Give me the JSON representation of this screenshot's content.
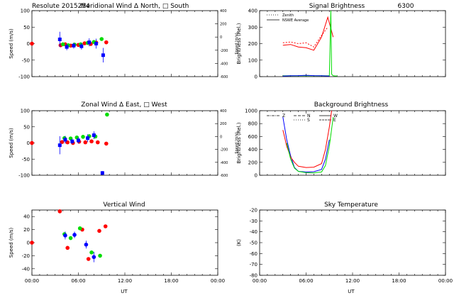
{
  "chart_data": [
    {
      "id": "meridional",
      "type": "scatter",
      "title_left": "Resolute  2015254",
      "title": "Meridional Wind  Δ North,  □ South",
      "xlabel": "",
      "ylabel": "Speed (m/s)",
      "ylabel_right": "Speed (m/s)",
      "xlim": [
        0,
        24
      ],
      "ylim": [
        -100,
        100
      ],
      "yticks": [
        -100,
        -50,
        0,
        50,
        100
      ],
      "ylim_right": [
        -600,
        400
      ],
      "yticks_right": [
        -600,
        -400,
        -200,
        0,
        200,
        400
      ],
      "series": [
        {
          "name": "red",
          "color": "#ff0000",
          "marker": "dot",
          "points": [
            [
              0,
              0
            ],
            [
              3.7,
              -5
            ],
            [
              4.3,
              -2
            ],
            [
              5.0,
              -6
            ],
            [
              6.0,
              -4
            ],
            [
              6.8,
              1
            ],
            [
              7.6,
              -1
            ],
            [
              8.3,
              3
            ],
            [
              9.6,
              4
            ]
          ]
        },
        {
          "name": "green",
          "color": "#00dd00",
          "marker": "dot",
          "points": [
            [
              4.0,
              -2
            ],
            [
              4.7,
              -5
            ],
            [
              5.5,
              -3
            ],
            [
              6.3,
              -2
            ],
            [
              7.2,
              2
            ],
            [
              8.0,
              5
            ],
            [
              9.0,
              14
            ]
          ]
        },
        {
          "name": "blue",
          "color": "#0000ff",
          "marker": "square",
          "points": [
            [
              3.6,
              13,
              23
            ],
            [
              4.5,
              -10,
              10
            ],
            [
              5.4,
              -6,
              9
            ],
            [
              6.4,
              -8,
              10
            ],
            [
              7.4,
              4,
              12
            ],
            [
              8.3,
              0,
              15
            ],
            [
              9.2,
              -35,
              22
            ]
          ]
        }
      ]
    },
    {
      "id": "zonal",
      "type": "scatter",
      "title": "Zonal Wind    Δ East,  □ West",
      "xlabel": "",
      "ylabel": "Speed (m/s)",
      "ylabel_right": "Speed (m/s)",
      "xlim": [
        0,
        24
      ],
      "ylim": [
        -100,
        100
      ],
      "yticks": [
        -100,
        -50,
        0,
        50,
        100
      ],
      "ylim_right": [
        -600,
        400
      ],
      "yticks_right": [
        -600,
        -400,
        -200,
        0,
        200,
        400
      ],
      "series": [
        {
          "name": "red",
          "color": "#ff0000",
          "marker": "dot",
          "points": [
            [
              0,
              0
            ],
            [
              3.9,
              3
            ],
            [
              4.6,
              2
            ],
            [
              5.3,
              0
            ],
            [
              6.1,
              4
            ],
            [
              6.9,
              2
            ],
            [
              7.7,
              5
            ],
            [
              8.5,
              2
            ],
            [
              9.6,
              -2
            ]
          ]
        },
        {
          "name": "green",
          "color": "#00dd00",
          "marker": "dot",
          "points": [
            [
              4.2,
              15
            ],
            [
              5.0,
              14
            ],
            [
              5.8,
              17
            ],
            [
              6.6,
              19
            ],
            [
              7.4,
              21
            ],
            [
              8.2,
              20
            ],
            [
              9.7,
              88
            ]
          ]
        },
        {
          "name": "blue",
          "color": "#0000ff",
          "marker": "square",
          "points": [
            [
              3.6,
              -7,
              28
            ],
            [
              4.3,
              10,
              12
            ],
            [
              5.2,
              5,
              8
            ],
            [
              6.0,
              8,
              10
            ],
            [
              7.2,
              15,
              12
            ],
            [
              8.0,
              24,
              12
            ],
            [
              9.1,
              -93,
              6
            ]
          ]
        }
      ]
    },
    {
      "id": "vertical",
      "type": "scatter",
      "title": "Vertical Wind",
      "xlabel": "UT",
      "ylabel": "Speed (m/s)",
      "xlim": [
        0,
        24
      ],
      "xticks": [
        "00:00",
        "06:00",
        "12:00",
        "18:00",
        "00:00"
      ],
      "ylim": [
        -50,
        50
      ],
      "yticks": [
        -40,
        -20,
        0,
        20,
        40
      ],
      "series": [
        {
          "name": "red",
          "color": "#ff0000",
          "marker": "dot",
          "points": [
            [
              0,
              0
            ],
            [
              3.6,
              48
            ],
            [
              4.6,
              -8
            ],
            [
              6.5,
              20
            ],
            [
              7.3,
              -25
            ],
            [
              8.7,
              18
            ],
            [
              9.5,
              25
            ]
          ]
        },
        {
          "name": "green",
          "color": "#00dd00",
          "marker": "dot",
          "points": [
            [
              4.2,
              13
            ],
            [
              5.0,
              7
            ],
            [
              6.2,
              22
            ],
            [
              7.7,
              -15
            ],
            [
              8.8,
              -20
            ]
          ]
        },
        {
          "name": "blue",
          "color": "#0000ff",
          "marker": "dot",
          "points": [
            [
              4.3,
              11,
              6
            ],
            [
              5.5,
              12,
              5
            ],
            [
              7.0,
              -3,
              6
            ],
            [
              8.0,
              -22,
              8
            ]
          ]
        }
      ]
    },
    {
      "id": "signal",
      "type": "line",
      "title": "Signal Brightness",
      "title_right": "6300",
      "xlabel": "",
      "ylabel": "Brightness (Rel.)",
      "xlim": [
        0,
        24
      ],
      "ylim": [
        0,
        400
      ],
      "yticks": [
        0,
        100,
        200,
        300,
        400
      ],
      "legend": [
        "Zenith",
        "NSWE Average"
      ],
      "series": [
        {
          "name": "Zenith",
          "color": "#ff0000",
          "dash": "2,2",
          "x": [
            3.0,
            4.0,
            5.0,
            6.0,
            7.0,
            8.0,
            8.8
          ],
          "y": [
            205,
            210,
            200,
            205,
            180,
            250,
            300
          ]
        },
        {
          "name": "red 2",
          "color": "#ff0000",
          "dash": "",
          "x": [
            3.0,
            4.0,
            5.0,
            6.0,
            7.0,
            8.0,
            8.8,
            9.5
          ],
          "y": [
            190,
            195,
            180,
            175,
            160,
            240,
            360,
            240
          ]
        },
        {
          "name": "green",
          "color": "#00dd00",
          "dash": "",
          "x": [
            3.0,
            5.0,
            7.0,
            8.5,
            9.0,
            9.2,
            9.3,
            9.5,
            10.0
          ],
          "y": [
            5,
            5,
            5,
            5,
            5,
            400,
            15,
            5,
            3
          ]
        },
        {
          "name": "NSWE Average",
          "color": "#0000ff",
          "dash": "",
          "x": [
            3.0,
            4.0,
            5.0,
            6.0,
            7.0,
            8.0,
            9.0
          ],
          "y": [
            3,
            5,
            6,
            8,
            6,
            5,
            3
          ]
        }
      ]
    },
    {
      "id": "background",
      "type": "line",
      "title": "Background Brightness",
      "xlabel": "",
      "ylabel": "Brightness (Rel.)",
      "xlim": [
        0,
        24
      ],
      "ylim": [
        0,
        1000
      ],
      "yticks": [
        0,
        200,
        400,
        600,
        800,
        1000
      ],
      "legend": [
        "Z",
        "N",
        "S",
        "W",
        "E"
      ],
      "series": [
        {
          "name": "blue",
          "color": "#0000ff",
          "dash": "",
          "x": [
            3.0,
            3.5,
            4.0,
            4.5,
            5.0,
            6.0,
            7.0,
            8.0,
            8.5,
            9.0
          ],
          "y": [
            900,
            550,
            300,
            120,
            60,
            50,
            55,
            90,
            250,
            550
          ]
        },
        {
          "name": "red",
          "color": "#ff0000",
          "dash": "",
          "x": [
            3.0,
            3.5,
            4.0,
            4.5,
            5.0,
            6.0,
            7.0,
            8.0,
            8.5,
            9.0,
            9.3
          ],
          "y": [
            700,
            450,
            280,
            200,
            140,
            120,
            125,
            180,
            400,
            750,
            1000
          ]
        },
        {
          "name": "green",
          "color": "#00dd00",
          "dash": "",
          "x": [
            3.5,
            4.0,
            4.5,
            5.0,
            6.0,
            7.0,
            8.0,
            8.5,
            9.0,
            9.5
          ],
          "y": [
            500,
            250,
            110,
            60,
            40,
            35,
            50,
            150,
            450,
            900
          ]
        }
      ]
    },
    {
      "id": "sky",
      "type": "line",
      "title": "Sky Temperature",
      "xlabel": "UT",
      "ylabel": "(K)",
      "xlim": [
        0,
        24
      ],
      "xticks": [
        "00:00",
        "06:00",
        "12:00",
        "18:00",
        "00:00"
      ],
      "ylim": [
        -80,
        -20
      ],
      "yticks": [
        -80,
        -70,
        -60,
        -50,
        -40,
        -30,
        -20
      ],
      "series": []
    }
  ]
}
